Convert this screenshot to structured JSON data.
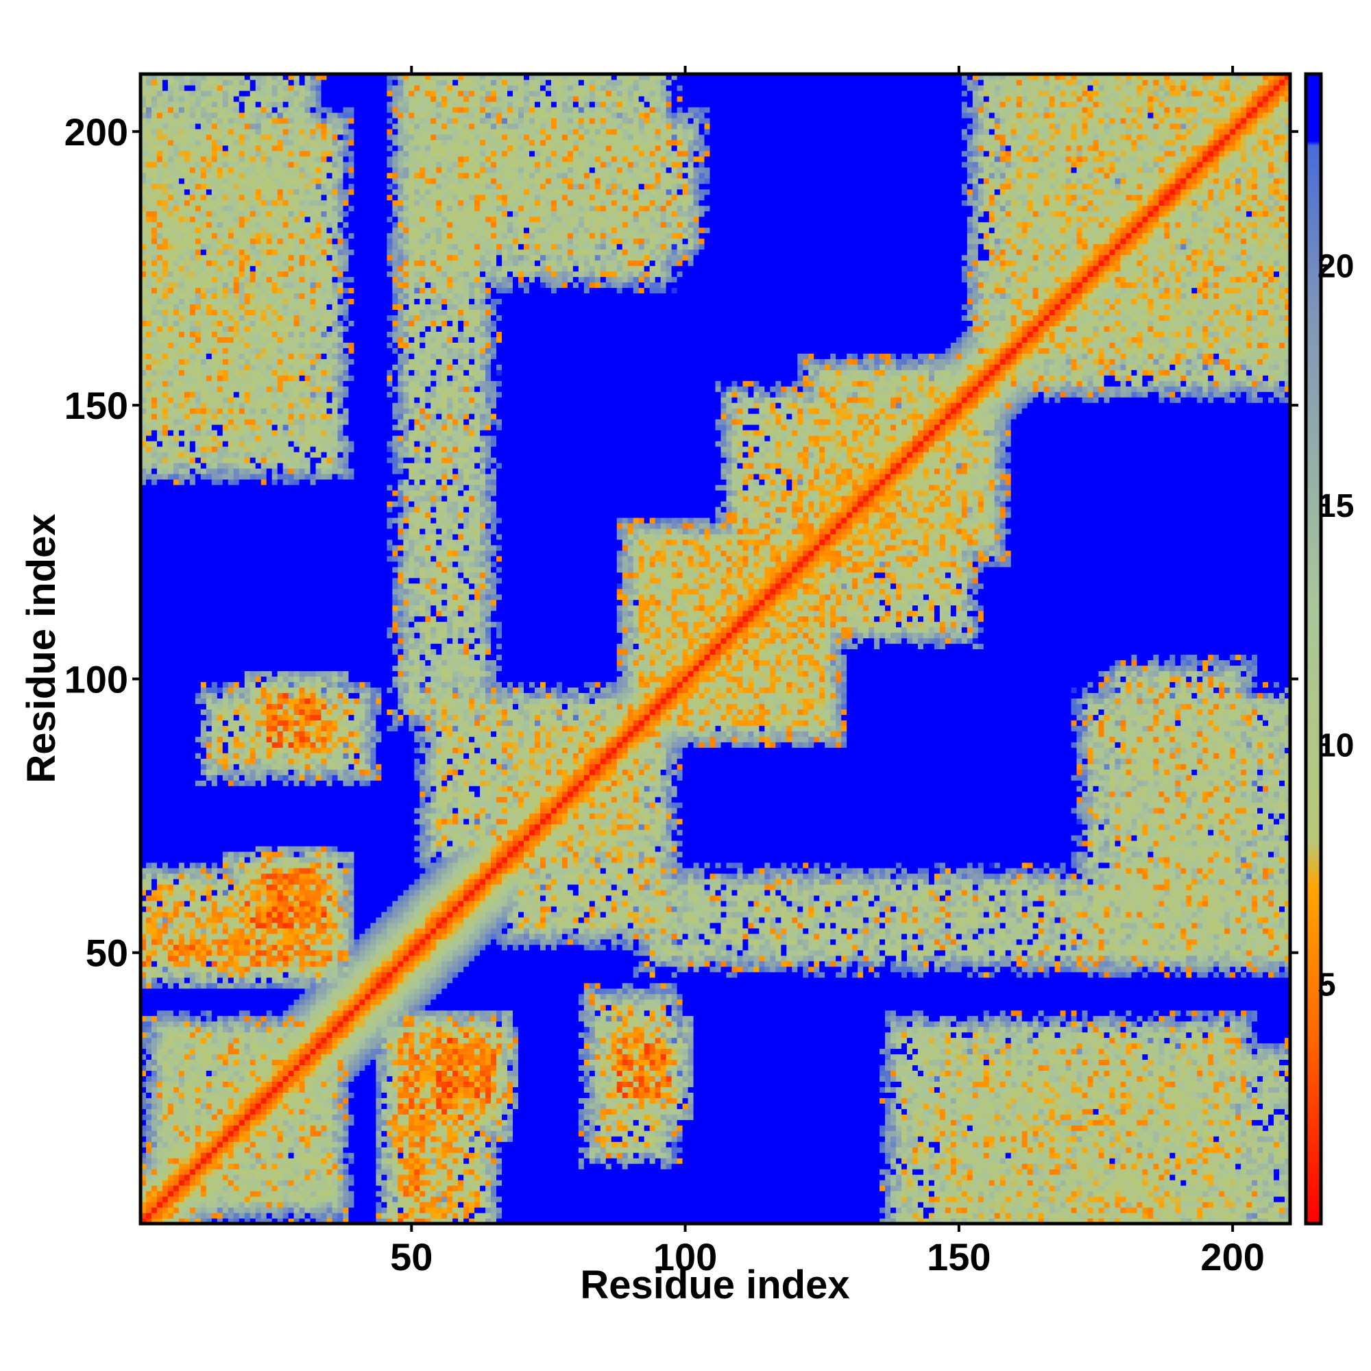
{
  "chart_data": {
    "type": "heatmap",
    "title": "",
    "xlabel": "Residue index",
    "ylabel": "Residue index",
    "n_residues": 210,
    "xlim": [
      1,
      210
    ],
    "ylim": [
      1,
      210
    ],
    "x_ticks": [
      50,
      100,
      150,
      200
    ],
    "y_ticks": [
      50,
      100,
      150,
      200
    ],
    "x_tick_labels": [
      "50",
      "100",
      "150",
      "200"
    ],
    "y_tick_labels": [
      "50",
      "100",
      "150",
      "200"
    ],
    "colorbar": {
      "range": [
        0,
        24
      ],
      "ticks": [
        5,
        10,
        15,
        20
      ],
      "tick_labels": [
        "5",
        "10",
        "15",
        "20"
      ],
      "stops": [
        {
          "value": 0,
          "color": "#ff0000"
        },
        {
          "value": 4,
          "color": "#ff6a00"
        },
        {
          "value": 7,
          "color": "#ffa500"
        },
        {
          "value": 8,
          "color": "#b8c878"
        },
        {
          "value": 13,
          "color": "#a9c59a"
        },
        {
          "value": 19,
          "color": "#7f96b8"
        },
        {
          "value": 22.5,
          "color": "#4a6cd8"
        },
        {
          "value": 22.6,
          "color": "#0000ff"
        },
        {
          "value": 24,
          "color": "#0000ff"
        }
      ]
    },
    "matrix_description": "Symmetric residue-residue distance map (Angstrom), values > ~22 saturate to blue",
    "contact_features": [
      {
        "kind": "diagonal",
        "value": 1
      },
      {
        "kind": "band",
        "i": [
          5,
          35
        ],
        "j": [
          5,
          35
        ],
        "value": 12
      },
      {
        "kind": "band",
        "i": [
          1,
          35
        ],
        "j": [
          48,
          52
        ],
        "value": 7
      },
      {
        "kind": "band",
        "i": [
          26,
          32
        ],
        "j": [
          55,
          65
        ],
        "value": 6
      },
      {
        "kind": "band",
        "i": [
          24,
          34
        ],
        "j": [
          88,
          97
        ],
        "value": 6
      },
      {
        "kind": "band",
        "i": [
          50,
          62
        ],
        "j": [
          1,
          35
        ],
        "value": 9
      },
      {
        "kind": "band",
        "i": [
          55,
          64
        ],
        "j": [
          20,
          35
        ],
        "value": 6
      },
      {
        "kind": "band",
        "i": [
          85,
          95
        ],
        "j": [
          15,
          40
        ],
        "value": 10
      },
      {
        "kind": "band",
        "i": [
          70,
          95
        ],
        "j": [
          55,
          90
        ],
        "value": 11
      },
      {
        "kind": "band",
        "i": [
          92,
          125
        ],
        "j": [
          92,
          125
        ],
        "value": 10
      },
      {
        "kind": "band",
        "i": [
          110,
          135
        ],
        "j": [
          125,
          150
        ],
        "value": 10
      },
      {
        "kind": "band",
        "i": [
          125,
          155
        ],
        "j": [
          125,
          155
        ],
        "value": 11
      },
      {
        "kind": "band",
        "i": [
          140,
          200
        ],
        "j": [
          1,
          35
        ],
        "value": 11
      },
      {
        "kind": "band",
        "i": [
          175,
          210
        ],
        "j": [
          50,
          95
        ],
        "value": 12
      },
      {
        "kind": "band",
        "i": [
          160,
          210
        ],
        "j": [
          155,
          210
        ],
        "value": 11
      },
      {
        "kind": "band",
        "i": [
          1,
          30
        ],
        "j": [
          150,
          210
        ],
        "value": 12
      },
      {
        "kind": "band",
        "i": [
          50,
          62
        ],
        "j": [
          95,
          210
        ],
        "value": 12
      },
      {
        "kind": "band",
        "i": [
          60,
          100
        ],
        "j": [
          180,
          200
        ],
        "value": 12
      }
    ]
  }
}
